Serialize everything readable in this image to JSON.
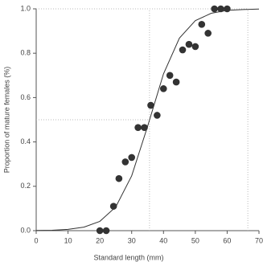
{
  "chart_data": {
    "type": "scatter",
    "x_label": "Standard length (mm)",
    "y_label": "Proportion of mature females (%)",
    "xlim": [
      0,
      70
    ],
    "ylim": [
      0,
      1
    ],
    "xticks": [
      0,
      10,
      20,
      30,
      40,
      50,
      60,
      70
    ],
    "yticks": [
      {
        "value": 0,
        "label": "0.0"
      },
      {
        "value": 0.2,
        "label": "0.2"
      },
      {
        "value": 0.4,
        "label": "0.4"
      },
      {
        "value": 0.6,
        "label": "0.6"
      },
      {
        "value": 0.8,
        "label": "0.8"
      },
      {
        "value": 1,
        "label": "1.0"
      }
    ],
    "color": "#333333",
    "x": [
      20,
      22,
      24.3,
      26,
      28,
      30,
      32,
      34,
      36,
      38,
      40,
      42,
      44,
      46,
      48,
      50,
      52,
      54,
      56,
      58,
      60
    ],
    "values": [
      0,
      0,
      0.11,
      0.235,
      0.31,
      0.33,
      0.465,
      0.465,
      0.565,
      0.52,
      0.64,
      0.7,
      0.67,
      0.815,
      0.84,
      0.83,
      0.93,
      0.89,
      1,
      1,
      1
    ],
    "curve": {
      "x": [
        0,
        5,
        10,
        15,
        20,
        25,
        30,
        35,
        40,
        45,
        50,
        55,
        60,
        65,
        70
      ],
      "values": [
        0.001,
        0.002,
        0.006,
        0.016,
        0.042,
        0.107,
        0.247,
        0.47,
        0.707,
        0.868,
        0.947,
        0.98,
        0.993,
        0.997,
        0.999
      ],
      "color": "#333333"
    },
    "reference_points": [
      {
        "x": 35.6,
        "y": 0.5
      },
      {
        "x": 66.5,
        "y": 1
      }
    ]
  }
}
